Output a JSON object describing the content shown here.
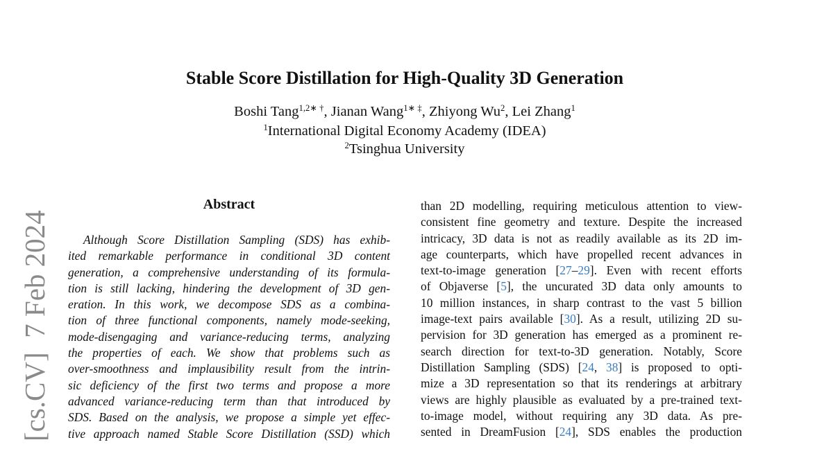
{
  "side_stamp": "[cs.CV]  7 Feb 2024",
  "header": {
    "title": "Stable Score Distillation for High-Quality 3D Generation",
    "authors": [
      "Boshi Tang",
      {
        "sup": "1,2∗ †"
      },
      ", Jianan Wang",
      {
        "sup": "1∗ ‡"
      },
      ", Zhiyong Wu",
      {
        "sup": "2"
      },
      ", Lei Zhang",
      {
        "sup": "1"
      }
    ],
    "affiliations": [
      [
        {
          "sup": "1"
        },
        "International Digital Economy Academy (IDEA)"
      ],
      [
        {
          "sup": "2"
        },
        "Tsinghua University"
      ]
    ]
  },
  "abstract": {
    "heading": "Abstract",
    "lines": [
      [
        "Although Score Distillation Sampling (SDS) has exhib-"
      ],
      [
        "ited remarkable performance in conditional 3D content"
      ],
      [
        "generation, a comprehensive understanding of its formula-"
      ],
      [
        "tion is still lacking, hindering the development of 3D gen-"
      ],
      [
        "eration.  In this work, we decompose SDS as a combina-"
      ],
      [
        "tion of three functional components, namely mode-seeking,"
      ],
      [
        "mode-disengaging and variance-reducing terms, analyzing"
      ],
      [
        "the properties of each.  We show that problems such as"
      ],
      [
        "over-smoothness and implausibility result from the intrin-"
      ],
      [
        "sic deficiency of the first two terms and propose a more"
      ],
      [
        "advanced variance-reducing term than that introduced by"
      ],
      [
        "SDS. Based on the analysis, we propose a simple yet effec-"
      ],
      [
        "tive approach named Stable Score Distillation (SSD) which"
      ]
    ]
  },
  "body": {
    "lines": [
      [
        "than 2D modelling, requiring meticulous attention to view-"
      ],
      [
        "consistent fine geometry and texture. Despite the increased"
      ],
      [
        "intricacy, 3D data is not as readily available as its 2D im-"
      ],
      [
        "age counterparts, which have propelled recent advances in"
      ],
      [
        "text-to-image generation [",
        {
          "link": "27"
        },
        "–",
        {
          "link": "29"
        },
        "]. Even with recent efforts"
      ],
      [
        "of Objaverse [",
        {
          "link": "5"
        },
        "], the uncurated 3D data only amounts to"
      ],
      [
        "10 million instances, in sharp contrast to the vast 5 billion"
      ],
      [
        "image-text pairs available [",
        {
          "link": "30"
        },
        "]. As a result, utilizing 2D su-"
      ],
      [
        "pervision for 3D generation has emerged as a prominent re-"
      ],
      [
        "search direction for text-to-3D generation. Notably, Score"
      ],
      [
        "Distillation Sampling (SDS) [",
        {
          "link": "24"
        },
        ", ",
        {
          "link": "38"
        },
        "] is proposed to opti-"
      ],
      [
        "mize a 3D representation so that its renderings at arbitrary"
      ],
      [
        "views are highly plausible as evaluated by a pre-trained text-"
      ],
      [
        "to-image model, without requiring any 3D data.  As pre-"
      ],
      [
        "sented in DreamFusion [",
        {
          "link": "24"
        },
        "], SDS enables the production"
      ]
    ]
  }
}
